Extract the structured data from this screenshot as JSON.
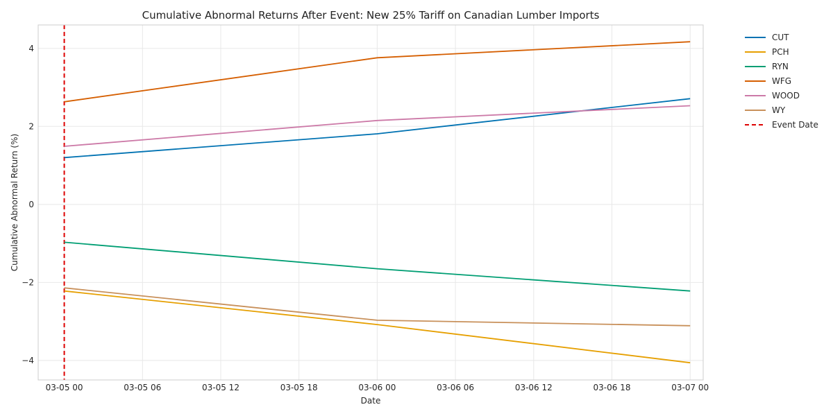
{
  "chart_data": {
    "type": "line",
    "title": "Cumulative Abnormal Returns After Event: New 25% Tariff on Canadian Lumber Imports",
    "xlabel": "Date",
    "ylabel": "Cumulative Abnormal Return (%)",
    "x": [
      "03-05 00",
      "03-06 00",
      "03-07 00"
    ],
    "xlim": [
      "03-04 22",
      "03-07 01"
    ],
    "x_ticks": [
      "03-05 00",
      "03-05 06",
      "03-05 12",
      "03-05 18",
      "03-06 00",
      "03-06 06",
      "03-06 12",
      "03-06 18",
      "03-07 00"
    ],
    "ylim": [
      -4.5,
      4.6
    ],
    "y_ticks": [
      -4,
      -2,
      0,
      2,
      4
    ],
    "y_tick_labels": [
      "−4",
      "−2",
      "0",
      "2",
      "4"
    ],
    "grid": true,
    "legend_position": "outside-top-right",
    "series": [
      {
        "name": "CUT",
        "color": "#0072b2",
        "values": [
          1.2,
          1.81,
          2.71
        ]
      },
      {
        "name": "PCH",
        "color": "#e69f00",
        "values": [
          -2.22,
          -3.08,
          -4.06
        ]
      },
      {
        "name": "RYN",
        "color": "#009e73",
        "values": [
          -0.97,
          -1.65,
          -2.22
        ]
      },
      {
        "name": "WFG",
        "color": "#d55e00",
        "values": [
          2.63,
          3.76,
          4.17
        ]
      },
      {
        "name": "WOOD",
        "color": "#cc79a7",
        "values": [
          1.49,
          2.15,
          2.53
        ]
      },
      {
        "name": "WY",
        "color": "#c8905a",
        "values": [
          -2.14,
          -2.97,
          -3.11
        ]
      }
    ],
    "event_line": {
      "name": "Event Date",
      "x": "03-05 00",
      "color": "#dd0000"
    }
  }
}
